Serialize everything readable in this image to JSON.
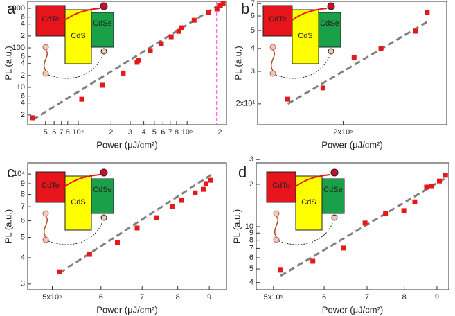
{
  "chart_data": [
    {
      "type": "scatter",
      "title": "a",
      "xlabel": "Power (μJ/cm²)",
      "ylabel": "PL (a.u.)",
      "xscale": "log",
      "yscale": "log",
      "color": "#e3191c",
      "fit_color": "#808080",
      "vline_color": "#ff3fff",
      "x": [
        3800,
        10750,
        16700,
        25900,
        34700,
        35500,
        45900,
        58000,
        71400,
        84000,
        89000,
        116000,
        157000,
        188000,
        202000,
        214000
      ],
      "values": [
        1.7,
        5,
        11.3,
        23,
        43,
        48,
        85,
        127,
        191,
        262,
        322,
        500,
        780,
        960,
        1170,
        1320
      ],
      "fit": {
        "x": [
          3800,
          214000
        ],
        "y": [
          1.5,
          1400
        ]
      },
      "vline": 188000,
      "xlim": [
        3430,
        230000
      ],
      "ylim": [
        1.13,
        1500
      ],
      "xticks": [
        {
          "value": 5000,
          "label": "5"
        },
        {
          "value": 6000,
          "label": "6"
        },
        {
          "value": 7000,
          "label": "7"
        },
        {
          "value": 8000,
          "label": "8"
        },
        {
          "value": 10000,
          "label": "10⁴"
        },
        {
          "value": 20000,
          "label": "2"
        },
        {
          "value": 30000,
          "label": "3"
        },
        {
          "value": 40000,
          "label": "4"
        },
        {
          "value": 50000,
          "label": "5"
        },
        {
          "value": 60000,
          "label": "6"
        },
        {
          "value": 70000,
          "label": "7"
        },
        {
          "value": 80000,
          "label": "8"
        },
        {
          "value": 100000,
          "label": "10⁵"
        },
        {
          "value": 200000,
          "label": "2"
        }
      ],
      "yticks": [
        2,
        4,
        6,
        10,
        {
          "value": 20,
          "label": "2"
        },
        {
          "value": 40,
          "label": "4"
        },
        {
          "value": 60,
          "label": "6"
        },
        100,
        {
          "value": 200,
          "label": "2"
        },
        {
          "value": 400,
          "label": "4"
        },
        {
          "value": 600,
          "label": "6"
        },
        1000
      ],
      "inset_labels": [
        "CdTe",
        "CdS",
        "CdSe"
      ]
    },
    {
      "type": "scatter",
      "title": "b",
      "xlabel": "Power (μJ/cm²)",
      "ylabel": "PL (a.u.)",
      "xscale": "log",
      "yscale": "log",
      "color": "#e3191c",
      "fit_color": "#808080",
      "x": [
        126000,
        169000,
        219000,
        274000,
        365000,
        403000
      ],
      "values": [
        21.2,
        24.4,
        35.7,
        39.8,
        49.6,
        62.7
      ],
      "fit": {
        "x": [
          126000,
          410000
        ],
        "y": [
          20,
          56.6
        ]
      },
      "xlim": [
        98000,
        474000
      ],
      "ylim": [
        15.4,
        72
      ],
      "xticks": [
        {
          "value": 200000,
          "label": "2x10⁵"
        }
      ],
      "yticks": [
        {
          "value": 20,
          "label": "2x10¹"
        },
        {
          "value": 30,
          "label": "3"
        },
        {
          "value": 40,
          "label": "4"
        },
        {
          "value": 50,
          "label": "5"
        },
        {
          "value": 60,
          "label": "6"
        },
        {
          "value": 70,
          "label": "7"
        }
      ],
      "inset_labels": [
        "CdTe",
        "CdS",
        "CdSe"
      ]
    },
    {
      "type": "scatter",
      "title": "c",
      "xlabel": "Power (μJ/cm²)",
      "ylabel": "PL (a.u.)",
      "xscale": "log",
      "yscale": "log",
      "color": "#e3191c",
      "fit_color": "#808080",
      "x": [
        514000,
        575000,
        638000,
        687000,
        738000,
        783000,
        812000,
        854000,
        880000,
        889000,
        904000
      ],
      "values": [
        3430,
        4150,
        4730,
        5540,
        6200,
        6990,
        7500,
        8140,
        8460,
        9000,
        9340
      ],
      "fit": {
        "x": [
          514000,
          906000
        ],
        "y": [
          3390,
          9910
        ]
      },
      "xlim": [
        456000,
        960000
      ],
      "ylim": [
        2820,
        11300
      ],
      "xticks": [
        {
          "value": 500000,
          "label": "5x10⁵"
        },
        {
          "value": 600000,
          "label": "6"
        },
        {
          "value": 700000,
          "label": "7"
        },
        {
          "value": 800000,
          "label": "8"
        },
        {
          "value": 900000,
          "label": "9"
        }
      ],
      "yticks": [
        {
          "value": 3000,
          "label": "3"
        },
        {
          "value": 4000,
          "label": "4"
        },
        {
          "value": 5000,
          "label": "5"
        },
        {
          "value": 6000,
          "label": "6"
        },
        {
          "value": 7000,
          "label": "7"
        },
        {
          "value": 8000,
          "label": "8"
        },
        {
          "value": 9000,
          "label": "9"
        },
        {
          "value": 10000,
          "label": "10⁴"
        }
      ],
      "inset_labels": [
        "CdTe",
        "CdS",
        "CdSe"
      ]
    },
    {
      "type": "scatter",
      "title": "d",
      "xlabel": "Power (μJ/cm²)",
      "ylabel": "PL (a.u.)",
      "xscale": "log",
      "yscale": "log",
      "color": "#e3191c",
      "fit_color": "#808080",
      "x": [
        513000,
        576000,
        643000,
        695000,
        748000,
        799000,
        831000,
        867000,
        883000,
        908000,
        928000
      ],
      "values": [
        4.9,
        5.67,
        7.04,
        10.6,
        12.4,
        13.0,
        15.0,
        19.1,
        19.3,
        21.1,
        23.2
      ],
      "fit": {
        "x": [
          513000,
          935000
        ],
        "y": [
          4.47,
          22.6
        ]
      },
      "xlim": [
        470000,
        939000
      ],
      "ylim": [
        3.56,
        28.4
      ],
      "xticks": [
        {
          "value": 500000,
          "label": "5x10⁵"
        },
        {
          "value": 600000,
          "label": "6"
        },
        {
          "value": 700000,
          "label": "7"
        },
        {
          "value": 800000,
          "label": "8"
        },
        {
          "value": 900000,
          "label": "9"
        }
      ],
      "yticks": [
        4,
        5,
        6,
        7,
        8,
        9,
        10,
        {
          "value": 20,
          "label": "2"
        },
        {
          "value": 30,
          "label": "3"
        }
      ],
      "inset_labels": [
        "CdTe",
        "CdS",
        "CdSe"
      ]
    }
  ]
}
